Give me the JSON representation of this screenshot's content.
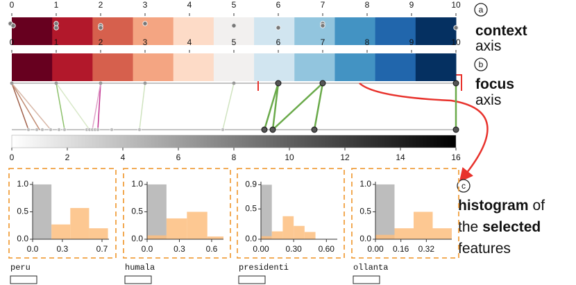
{
  "color_scale": [
    "#67001f",
    "#b2182b",
    "#d6604d",
    "#f4a582",
    "#fddbc7",
    "#f2f0ef",
    "#d1e5f0",
    "#92c5de",
    "#4393c3",
    "#2166ac",
    "#053061"
  ],
  "context_axis": {
    "xlim": [
      0,
      10
    ],
    "ticks": [
      0,
      1,
      2,
      3,
      4,
      5,
      6,
      7,
      8,
      9,
      10
    ],
    "points": [
      0,
      0,
      1,
      1,
      2,
      2,
      3,
      5,
      6,
      7,
      7,
      10
    ]
  },
  "focus_axis": {
    "xlim": [
      0,
      10
    ],
    "ticks": [
      0,
      1,
      2,
      3,
      4,
      5,
      6,
      7,
      8,
      9,
      10
    ],
    "points": [
      {
        "value": 0,
        "selected": false
      },
      {
        "value": 1,
        "selected": false
      },
      {
        "value": 2,
        "selected": false
      },
      {
        "value": 3,
        "selected": false
      },
      {
        "value": 5,
        "selected": false
      },
      {
        "value": 6,
        "selected": true
      },
      {
        "value": 7,
        "selected": true
      },
      {
        "value": 10,
        "selected": true
      }
    ]
  },
  "projection_axis": {
    "xlim": [
      0,
      16
    ],
    "ticks": [
      0,
      2,
      4,
      6,
      8,
      10,
      12,
      14,
      16
    ],
    "points": [
      {
        "value": 0.6,
        "selected": false
      },
      {
        "value": 0.9,
        "selected": false
      },
      {
        "value": 1.1,
        "selected": false
      },
      {
        "value": 1.4,
        "selected": false
      },
      {
        "value": 1.7,
        "selected": false
      },
      {
        "value": 1.9,
        "selected": false
      },
      {
        "value": 2.7,
        "selected": false
      },
      {
        "value": 2.8,
        "selected": false
      },
      {
        "value": 2.9,
        "selected": false
      },
      {
        "value": 3.0,
        "selected": false
      },
      {
        "value": 3.1,
        "selected": false
      },
      {
        "value": 3.6,
        "selected": false
      },
      {
        "value": 4.6,
        "selected": false
      },
      {
        "value": 7.6,
        "selected": false
      },
      {
        "value": 9.1,
        "selected": true
      },
      {
        "value": 9.4,
        "selected": true
      },
      {
        "value": 10.9,
        "selected": true
      },
      {
        "value": 16,
        "selected": true
      }
    ],
    "links": [
      {
        "from": 0,
        "to": 0.6,
        "color": "#a0604a"
      },
      {
        "from": 0,
        "to": 1.0,
        "color": "#c08a70"
      },
      {
        "from": 0,
        "to": 1.4,
        "color": "#d8b8a8"
      },
      {
        "from": 1,
        "to": 1.9,
        "color": "#8cc06a"
      },
      {
        "from": 1,
        "to": 2.8,
        "color": "#d8e8c8"
      },
      {
        "from": 2,
        "to": 3.1,
        "color": "#c0308f"
      },
      {
        "from": 2,
        "to": 2.9,
        "color": "#e0a0c8"
      },
      {
        "from": 3,
        "to": 4.6,
        "color": "#cfe3bf"
      },
      {
        "from": 5,
        "to": 7.6,
        "color": "#cfe3bf"
      },
      {
        "from": 6,
        "to": 9.1,
        "color": "#6aaa4a"
      },
      {
        "from": 6,
        "to": 9.4,
        "color": "#6aaa4a"
      },
      {
        "from": 7,
        "to": 9.4,
        "color": "#6aaa4a"
      },
      {
        "from": 7,
        "to": 10.9,
        "color": "#6aaa4a"
      },
      {
        "from": 10,
        "to": 16,
        "color": "#6aaa4a"
      }
    ]
  },
  "annotations": [
    {
      "letter": "a",
      "lines": [
        [
          {
            "text": "context",
            "bold": true
          }
        ],
        [
          {
            "text": "axis",
            "bold": false
          }
        ]
      ]
    },
    {
      "letter": "b",
      "lines": [
        [
          {
            "text": "focus",
            "bold": true
          }
        ],
        [
          {
            "text": "axis",
            "bold": false
          }
        ]
      ]
    },
    {
      "letter": "c",
      "lines": [
        [
          {
            "text": "histogram",
            "bold": true
          },
          {
            "text": "of",
            "bold": false
          }
        ],
        [
          {
            "text": "the",
            "bold": false
          },
          {
            "text": "selected",
            "bold": true
          }
        ],
        [
          {
            "text": "features",
            "bold": false
          }
        ]
      ]
    }
  ],
  "chart_data": [
    {
      "type": "histogram",
      "title": "peru",
      "bins": [
        0,
        0.19,
        0.38,
        0.57,
        0.76
      ],
      "xlim": [
        0,
        0.77
      ],
      "xticks": [
        {
          "value": 0,
          "label": "0.0"
        },
        0.3,
        0.7
      ],
      "ylim": [
        0,
        1.05
      ],
      "yticks": [
        {
          "value": 0,
          "label": "0.0"
        },
        0.5,
        {
          "value": 1,
          "label": "1.0"
        }
      ],
      "series": [
        {
          "color": "#bdbdbd",
          "values": [
            1.0,
            0,
            0,
            0
          ]
        },
        {
          "color": "#fdbe7f",
          "values": [
            0,
            0.27,
            0.57,
            0.2
          ]
        }
      ]
    },
    {
      "type": "histogram",
      "title": "humala",
      "bins": [
        0,
        0.18,
        0.37,
        0.56,
        0.71
      ],
      "xlim": [
        0,
        0.71
      ],
      "xticks": [
        {
          "value": 0,
          "label": "0.0"
        },
        0.3,
        0.6
      ],
      "ylim": [
        0,
        1.05
      ],
      "yticks": [
        {
          "value": 0,
          "label": "0.0"
        },
        0.5,
        {
          "value": 1,
          "label": "1.0"
        }
      ],
      "series": [
        {
          "color": "#bdbdbd",
          "values": [
            1.0,
            0,
            0,
            0
          ]
        },
        {
          "color": "#fdbe7f",
          "values": [
            0.07,
            0.38,
            0.5,
            0.05
          ]
        }
      ]
    },
    {
      "type": "histogram",
      "title": "presidenti",
      "bins": [
        0,
        0.1,
        0.2,
        0.3,
        0.4,
        0.5
      ],
      "xlim": [
        0,
        0.7
      ],
      "xticks": [
        {
          "value": 0,
          "label": "0.00"
        },
        {
          "value": 0.3,
          "label": "0.30"
        },
        {
          "value": 0.6,
          "label": "0.60"
        }
      ],
      "ylim": [
        0,
        0.95
      ],
      "yticks": [
        {
          "value": 0,
          "label": "0.0"
        },
        0.5,
        0.9
      ],
      "series": [
        {
          "color": "#bdbdbd",
          "values": [
            0.9,
            0,
            0,
            0,
            0
          ]
        },
        {
          "color": "#fdbe7f",
          "values": [
            0.05,
            0.13,
            0.38,
            0.22,
            0.12
          ]
        }
      ]
    },
    {
      "type": "histogram",
      "title": "ollanta",
      "bins": [
        0,
        0.12,
        0.24,
        0.36,
        0.48
      ],
      "xlim": [
        0,
        0.48
      ],
      "xticks": [
        {
          "value": 0,
          "label": "0.00"
        },
        0.16,
        0.32
      ],
      "ylim": [
        0,
        1.05
      ],
      "yticks": [
        {
          "value": 0,
          "label": "0.0"
        },
        0.5,
        {
          "value": 1,
          "label": "1.0"
        }
      ],
      "series": [
        {
          "color": "#bdbdbd",
          "values": [
            1.0,
            0,
            0,
            0
          ]
        },
        {
          "color": "#fdbe7f",
          "values": [
            0.08,
            0.2,
            0.5,
            0.2
          ]
        }
      ]
    }
  ]
}
